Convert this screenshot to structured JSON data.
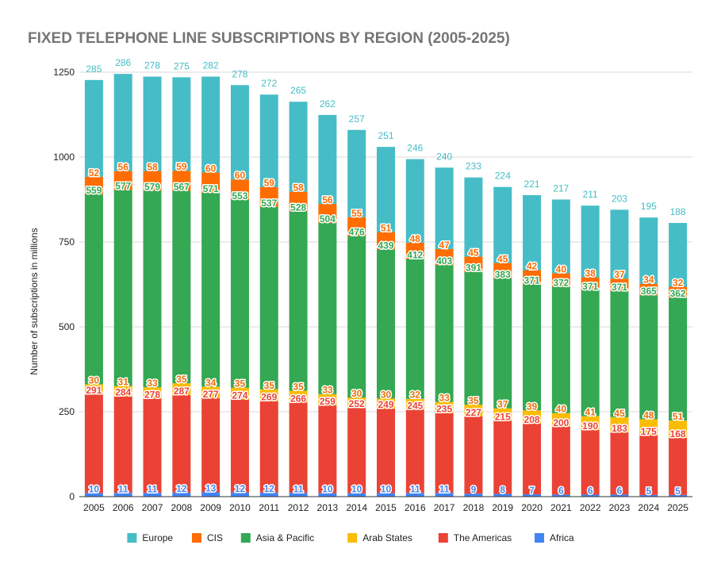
{
  "chart_data": {
    "type": "bar",
    "stacked": true,
    "title": "FIXED TELEPHONE LINE SUBSCRIPTIONS BY REGION (2005-2025)",
    "xlabel": "",
    "ylabel": "Number of subscriptions in millions",
    "ylim": [
      0,
      1250
    ],
    "yticks": [
      0,
      250,
      500,
      750,
      1000,
      1250
    ],
    "grid": true,
    "legend_position": "bottom",
    "categories": [
      "2005",
      "2006",
      "2007",
      "2008",
      "2009",
      "2010",
      "2011",
      "2012",
      "2013",
      "2014",
      "2015",
      "2016",
      "2017",
      "2018",
      "2019",
      "2020",
      "2021",
      "2022",
      "2023",
      "2024",
      "2025"
    ],
    "series": [
      {
        "name": "Africa",
        "color": "#4285f4",
        "label_color": "#4285f4",
        "values": [
          10,
          11,
          11,
          12,
          13,
          12,
          12,
          11,
          10,
          10,
          10,
          11,
          11,
          9,
          8,
          7,
          6,
          6,
          6,
          5,
          5
        ]
      },
      {
        "name": "The Americas",
        "color": "#ea4335",
        "label_color": "#ea4335",
        "values": [
          291,
          284,
          278,
          287,
          277,
          274,
          269,
          266,
          259,
          252,
          249,
          245,
          235,
          227,
          215,
          208,
          200,
          190,
          183,
          175,
          168
        ]
      },
      {
        "name": "Arab States",
        "color": "#fbbc04",
        "label_color": "#e8710a",
        "values": [
          30,
          31,
          33,
          35,
          34,
          35,
          35,
          35,
          33,
          30,
          30,
          32,
          33,
          35,
          37,
          39,
          40,
          41,
          45,
          48,
          51
        ]
      },
      {
        "name": "Asia & Pacific",
        "color": "#34a853",
        "label_color": "#34a853",
        "values": [
          559,
          577,
          579,
          567,
          571,
          553,
          537,
          528,
          504,
          476,
          439,
          412,
          403,
          391,
          383,
          371,
          372,
          371,
          371,
          365,
          362
        ]
      },
      {
        "name": "CIS",
        "color": "#ff6d01",
        "label_color": "#ff6d01",
        "values": [
          52,
          56,
          58,
          59,
          60,
          60,
          59,
          58,
          56,
          55,
          51,
          48,
          47,
          45,
          45,
          42,
          40,
          38,
          37,
          34,
          32
        ]
      },
      {
        "name": "Europe",
        "color": "#46bdc6",
        "label_color": "#46bdc6",
        "values": [
          285,
          286,
          278,
          275,
          282,
          278,
          272,
          265,
          262,
          257,
          251,
          246,
          240,
          233,
          224,
          221,
          217,
          211,
          203,
          195,
          188
        ]
      }
    ],
    "legend_order": [
      "Europe",
      "CIS",
      "Asia & Pacific",
      "Arab States",
      "The Americas",
      "Africa"
    ],
    "gridline_color": "#d9d9d9",
    "axis_color": "#333333"
  }
}
